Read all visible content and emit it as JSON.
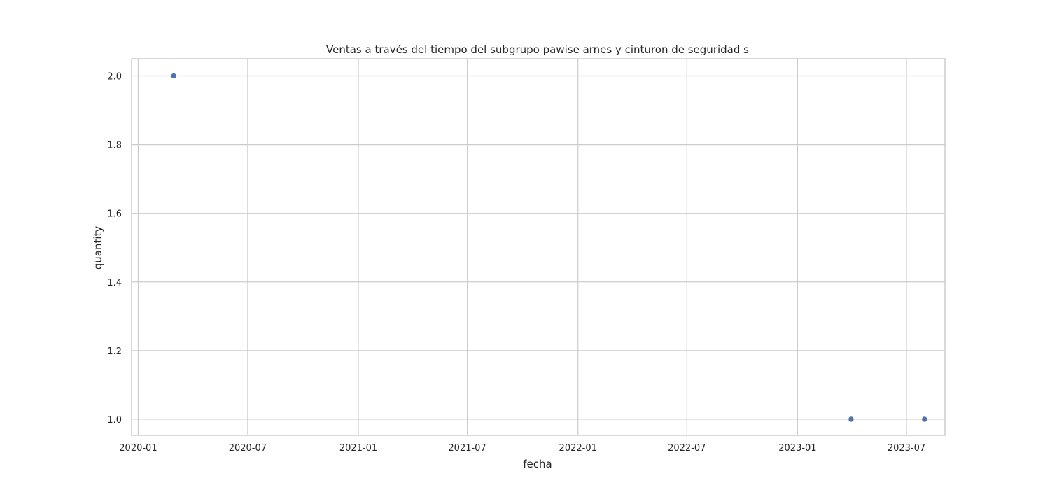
{
  "chart_data": {
    "type": "scatter",
    "title": "Ventas a través del tiempo del subgrupo pawise arnes y cinturon de seguridad s",
    "xlabel": "fecha",
    "ylabel": "quantity",
    "x_ticks": [
      "2020-01",
      "2020-07",
      "2021-01",
      "2021-07",
      "2022-01",
      "2022-07",
      "2023-01",
      "2023-07"
    ],
    "y_ticks": [
      "1.0",
      "1.2",
      "1.4",
      "1.6",
      "1.8",
      "2.0"
    ],
    "xlim": [
      "2019-12-21",
      "2023-09-03"
    ],
    "ylim": [
      0.953,
      2.05
    ],
    "grid": true,
    "marker_color": "#4c72b0",
    "points": [
      {
        "x": "2020-02-29",
        "y": 2
      },
      {
        "x": "2023-03-31",
        "y": 1
      },
      {
        "x": "2023-07-31",
        "y": 1
      }
    ]
  }
}
